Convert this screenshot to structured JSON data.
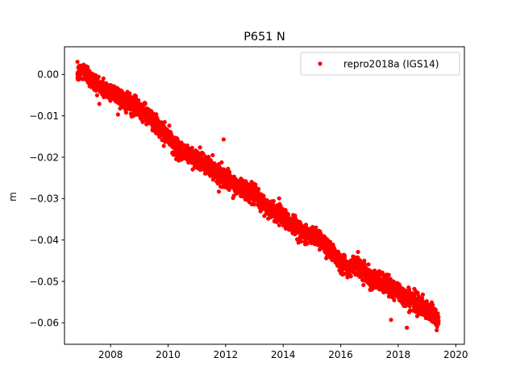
{
  "chart_data": {
    "type": "scatter",
    "title": "P651 N",
    "xlabel": "",
    "ylabel": "m",
    "xlim": [
      2006.4,
      2020.3
    ],
    "ylim": [
      -0.0652,
      0.0067
    ],
    "x_ticks": [
      2008,
      2010,
      2012,
      2014,
      2016,
      2018,
      2020
    ],
    "y_ticks": [
      0.0,
      -0.01,
      -0.02,
      -0.03,
      -0.04,
      -0.05,
      -0.06
    ],
    "x_tick_labels": [
      "2008",
      "2010",
      "2012",
      "2014",
      "2016",
      "2018",
      "2020"
    ],
    "y_tick_labels": [
      "0.00",
      "−0.01",
      "−0.02",
      "−0.03",
      "−0.04",
      "−0.05",
      "−0.06"
    ],
    "grid": false,
    "legend_position": "top-right",
    "series": [
      {
        "name": "repro2018a (IGS14)",
        "color": "#ff0000",
        "marker": "circle",
        "x": [
          2006.85,
          2007.0,
          2007.15,
          2007.3,
          2007.5,
          2007.75,
          2008.0,
          2008.25,
          2008.5,
          2008.75,
          2009.0,
          2009.25,
          2009.5,
          2009.75,
          2010.0,
          2010.25,
          2010.5,
          2010.75,
          2011.0,
          2011.25,
          2011.5,
          2011.75,
          2012.0,
          2012.25,
          2012.5,
          2012.75,
          2013.0,
          2013.25,
          2013.5,
          2013.75,
          2014.0,
          2014.25,
          2014.5,
          2014.75,
          2015.0,
          2015.25,
          2015.5,
          2015.75,
          2016.0,
          2016.25,
          2016.5,
          2016.75,
          2017.0,
          2017.25,
          2017.5,
          2017.75,
          2018.0,
          2018.25,
          2018.5,
          2018.75,
          2019.0,
          2019.25,
          2019.4
        ],
        "y": [
          0.0,
          0.001,
          0.0005,
          -0.001,
          -0.002,
          -0.0035,
          -0.004,
          -0.005,
          -0.0065,
          -0.0075,
          -0.008,
          -0.0095,
          -0.0115,
          -0.0135,
          -0.015,
          -0.0175,
          -0.019,
          -0.0195,
          -0.0205,
          -0.0215,
          -0.0225,
          -0.024,
          -0.025,
          -0.0265,
          -0.0275,
          -0.028,
          -0.029,
          -0.031,
          -0.032,
          -0.0335,
          -0.034,
          -0.036,
          -0.037,
          -0.0385,
          -0.039,
          -0.0395,
          -0.0415,
          -0.043,
          -0.0455,
          -0.0465,
          -0.046,
          -0.047,
          -0.049,
          -0.05,
          -0.0505,
          -0.0515,
          -0.0525,
          -0.054,
          -0.0545,
          -0.0555,
          -0.0575,
          -0.058,
          -0.0595
        ]
      }
    ],
    "outliers": [
      {
        "x": 2011.93,
        "y": -0.0157
      },
      {
        "x": 2017.75,
        "y": -0.0593
      },
      {
        "x": 2018.3,
        "y": -0.0612
      }
    ]
  }
}
